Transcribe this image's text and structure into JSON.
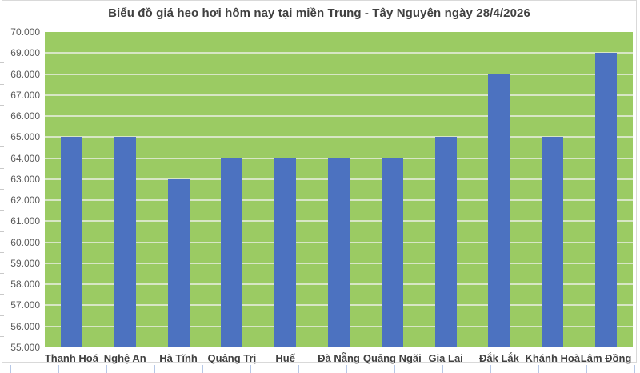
{
  "chart_data": {
    "type": "bar",
    "title": "Biểu đồ giá heo hơi hôm nay tại miền Trung - Tây Nguyên ngày 28/4/2026",
    "categories": [
      "Thanh Hoá",
      "Nghệ An",
      "Hà Tĩnh",
      "Quảng Trị",
      "Huế",
      "Đà Nẵng",
      "Quảng Ngãi",
      "Gia Lai",
      "Đắk Lắk",
      "Khánh Hoà",
      "Lâm Đồng"
    ],
    "values": [
      65000,
      65000,
      63000,
      64000,
      64000,
      64000,
      64000,
      65000,
      68000,
      65000,
      69000
    ],
    "xlabel": "",
    "ylabel": "",
    "ylim": [
      55000,
      70000
    ],
    "y_step": 1000,
    "y_ticks": [
      "70.000",
      "69.000",
      "68.000",
      "67.000",
      "66.000",
      "65.000",
      "64.000",
      "63.000",
      "62.000",
      "61.000",
      "60.000",
      "59.000",
      "58.000",
      "57.000",
      "56.000",
      "55.000"
    ],
    "grid": true,
    "legend": "none",
    "colors": {
      "bar": "#4C72C0",
      "plot_bg": "#9BCB63",
      "gridline": "#D7E6C4",
      "title_text": "#404040",
      "axis_text": "#595959",
      "frame_border": "#D9D9D9",
      "edge_tick": "#B6C7E6"
    }
  }
}
